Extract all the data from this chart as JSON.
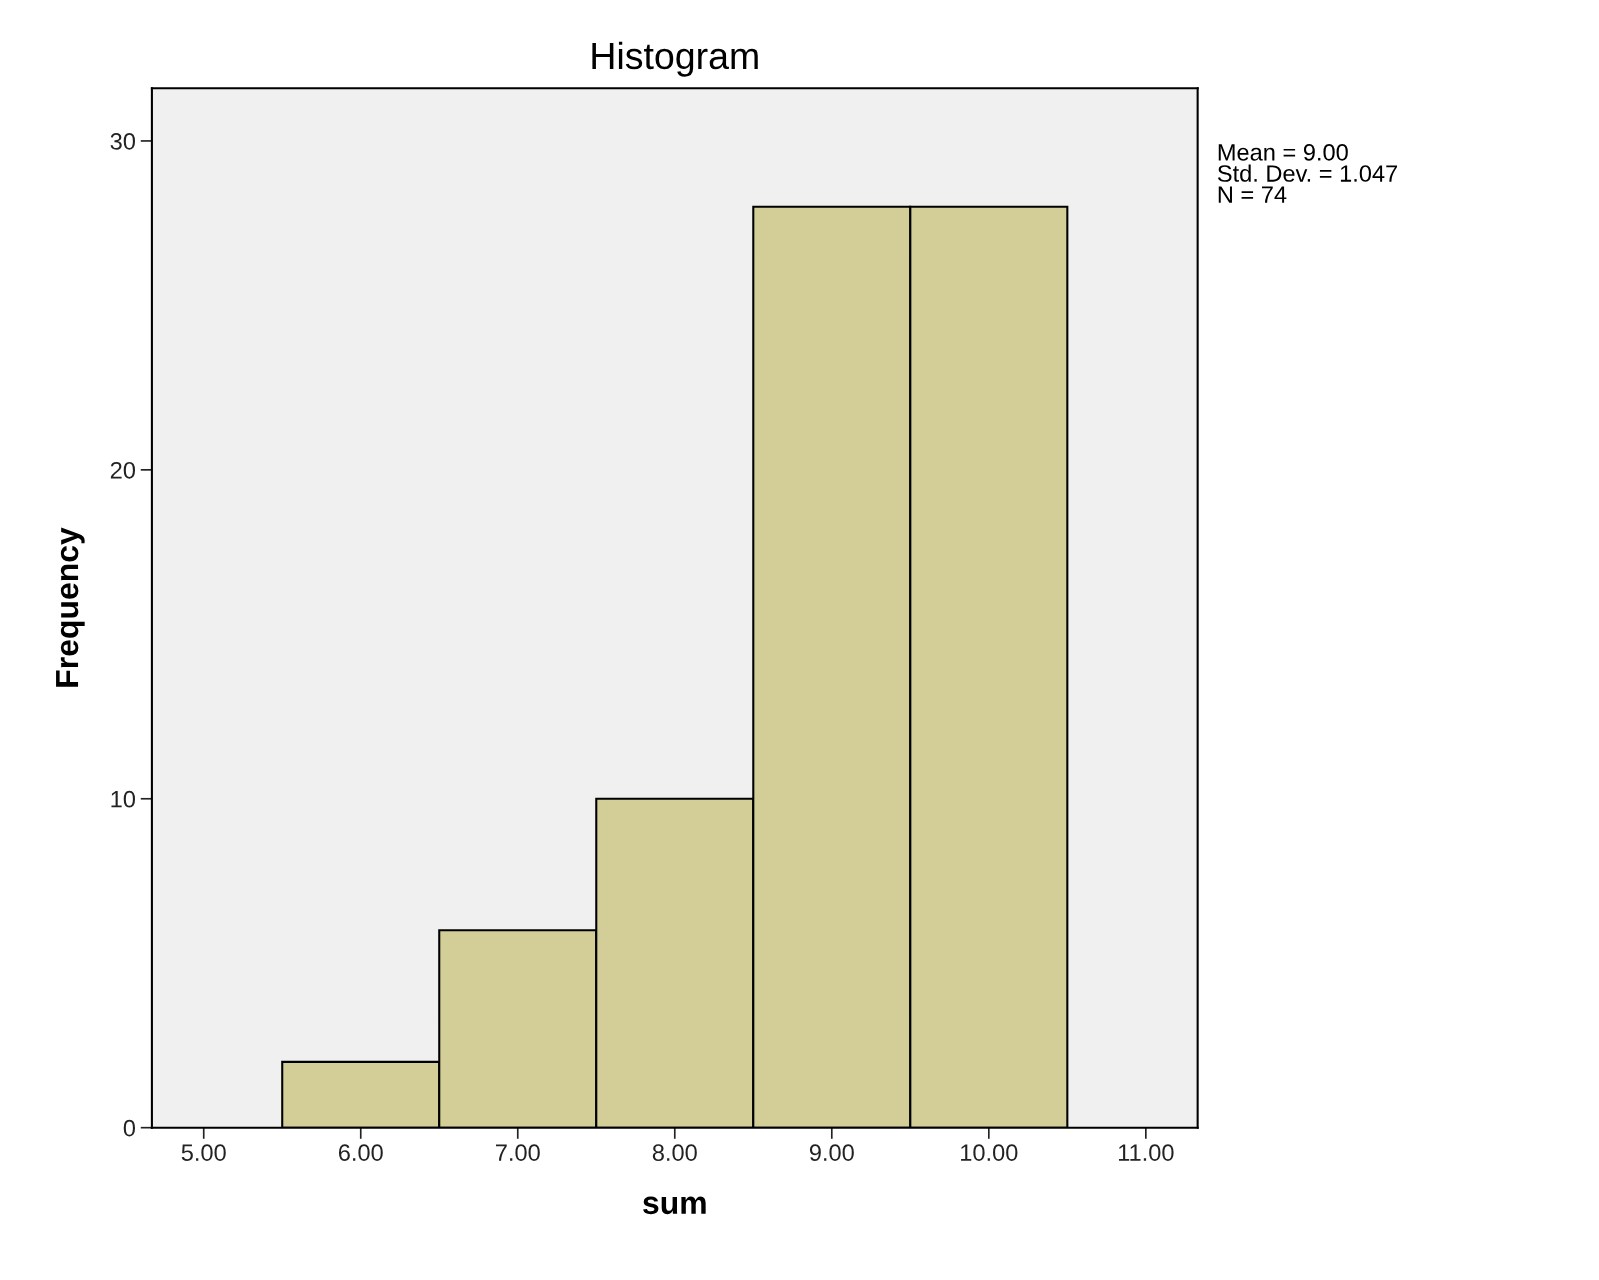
{
  "chart_data": {
    "type": "histogram",
    "title": "Histogram",
    "xlabel": "sum",
    "ylabel": "Frequency",
    "bins": [
      5.5,
      6.5,
      7.5,
      8.5,
      9.5,
      10.5
    ],
    "values": [
      2,
      6,
      10,
      28,
      28
    ],
    "color": "#d3ce97",
    "xlim": [
      4.67,
      11.33
    ],
    "xticks": [
      {
        "value": 5,
        "label": "5.00"
      },
      {
        "value": 6,
        "label": "6.00"
      },
      {
        "value": 7,
        "label": "7.00"
      },
      {
        "value": 8,
        "label": "8.00"
      },
      {
        "value": 9,
        "label": "9.00"
      },
      {
        "value": 10,
        "label": "10.00"
      },
      {
        "value": 11,
        "label": "11.00"
      }
    ],
    "ylim": [
      0,
      31.6
    ],
    "yticks": [
      0,
      10,
      20,
      30
    ],
    "grid": false,
    "annotations": [
      "Mean = 9.00\nStd. Dev. = 1.047\nN = 74"
    ]
  }
}
